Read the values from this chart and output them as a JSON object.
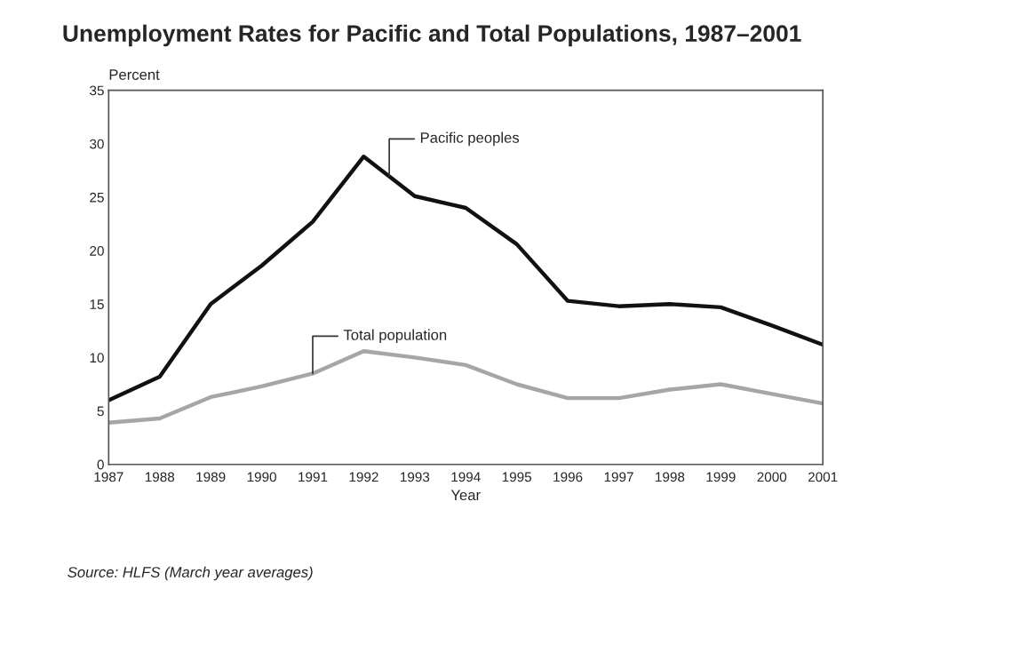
{
  "chart_data": {
    "type": "line",
    "title": "Unemployment Rates for Pacific and Total Populations, 1987–2001",
    "xlabel": "Year",
    "ylabel": "Percent",
    "x": [
      1987,
      1988,
      1989,
      1990,
      1991,
      1992,
      1993,
      1994,
      1995,
      1996,
      1997,
      1998,
      1999,
      2000,
      2001
    ],
    "series": [
      {
        "color": "#111111",
        "values": [
          6.0,
          8.2,
          15.0,
          18.6,
          22.7,
          28.8,
          25.1,
          24.0,
          20.6,
          15.3,
          14.8,
          15.0,
          14.7,
          13.0,
          11.2
        ]
      },
      {
        "color": "#a6a6a6",
        "values": [
          3.9,
          4.3,
          6.3,
          7.3,
          8.5,
          10.6,
          10.0,
          9.3,
          7.5,
          6.2,
          6.2,
          7.0,
          7.5,
          6.6,
          5.7
        ]
      }
    ],
    "xlim": [
      1987,
      2001
    ],
    "xticks": [
      1987,
      1988,
      1989,
      1990,
      1991,
      1992,
      1993,
      1994,
      1995,
      1996,
      1997,
      1998,
      1999,
      2000,
      2001
    ],
    "ylim": [
      0,
      35
    ],
    "yticks": [
      0,
      5,
      10,
      15,
      20,
      25,
      30,
      35
    ],
    "grid": false,
    "legend": false,
    "marker": "none",
    "line_style": "solid",
    "annotations": [
      {
        "text": "Pacific peoples",
        "x": 1992.5,
        "y": 26.95
      },
      {
        "text": "Total population",
        "x": 1991,
        "y": 8.5
      },
      "Source: HLFS (March year averages)"
    ]
  }
}
